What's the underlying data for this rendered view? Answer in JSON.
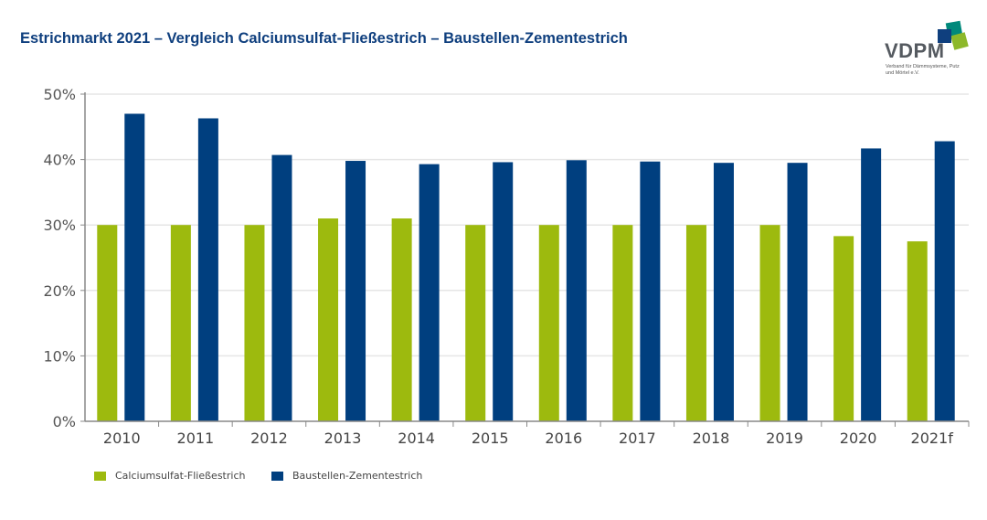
{
  "title": "Estrichmarkt 2021 – Vergleich Calciumsulfat-Fließestrich – Baustellen-Zementestrich",
  "logo": {
    "text": "VDPM",
    "subtitle": "Verband für Dämmsysteme, Putz und Mörtel e.V.",
    "colors": [
      "#0f3f7e",
      "#00897b",
      "#8db82b"
    ]
  },
  "chart_data": {
    "type": "bar",
    "title": "Estrichmarkt 2021 – Vergleich Calciumsulfat-Fließestrich – Baustellen-Zementestrich",
    "xlabel": "",
    "ylabel": "",
    "categories": [
      "2010",
      "2011",
      "2012",
      "2013",
      "2014",
      "2015",
      "2016",
      "2017",
      "2018",
      "2019",
      "2020",
      "2021f"
    ],
    "ylim": [
      0,
      50
    ],
    "yticks": [
      "0%",
      "10%",
      "20%",
      "30%",
      "40%",
      "50%"
    ],
    "grid": true,
    "legend_position": "bottom-left",
    "series": [
      {
        "name": "Calciumsulfat-Fließestrich",
        "color": "#9dba0e",
        "values": [
          30,
          30,
          30,
          31,
          31,
          30,
          30,
          30,
          30,
          30,
          28.3,
          27.5
        ]
      },
      {
        "name": "Baustellen-Zementestrich",
        "color": "#003f7f",
        "values": [
          47,
          46.3,
          40.7,
          39.8,
          39.3,
          39.6,
          39.9,
          39.7,
          39.5,
          39.5,
          41.7,
          42.8
        ]
      }
    ]
  }
}
